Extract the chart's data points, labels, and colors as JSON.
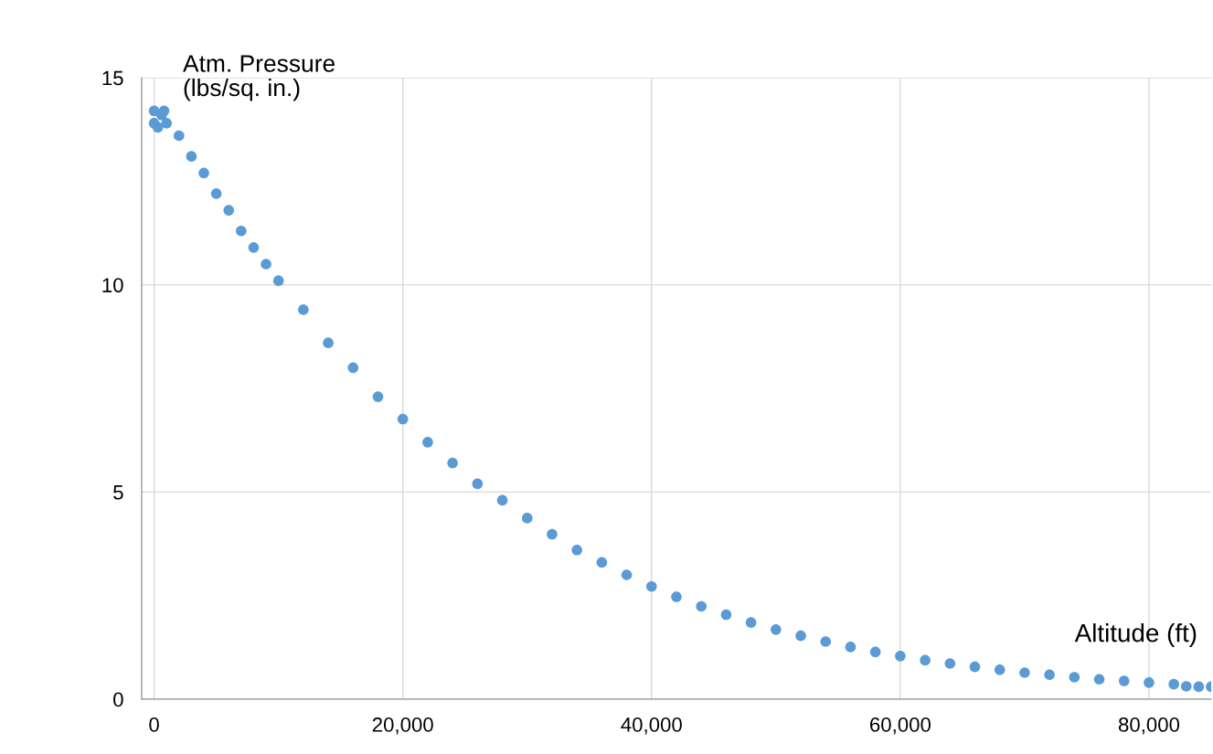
{
  "chart_data": {
    "type": "scatter",
    "xlabel": "Altitude (ft)",
    "ylabel": "Atm. Pressure\n(lbs/sq. in.)",
    "series": [
      {
        "color": "#5b9bd5",
        "x": [
          0,
          0,
          300,
          600,
          800,
          1000,
          2000,
          3000,
          4000,
          5000,
          6000,
          7000,
          8000,
          9000,
          10000,
          12000,
          14000,
          16000,
          18000,
          20000,
          22000,
          24000,
          26000,
          28000,
          30000,
          32000,
          34000,
          36000,
          38000,
          40000,
          42000,
          44000,
          46000,
          48000,
          50000,
          52000,
          54000,
          56000,
          58000,
          60000,
          62000,
          64000,
          66000,
          68000,
          70000,
          72000,
          74000,
          76000,
          78000,
          80000,
          82000,
          83000,
          84000,
          85000
        ],
        "values": [
          14.2,
          13.9,
          13.8,
          14.1,
          14.2,
          13.9,
          13.6,
          13.1,
          12.7,
          12.2,
          11.8,
          11.3,
          10.9,
          10.5,
          10.1,
          9.4,
          8.6,
          8.0,
          7.3,
          6.76,
          6.2,
          5.7,
          5.2,
          4.8,
          4.37,
          3.98,
          3.6,
          3.3,
          3.0,
          2.72,
          2.47,
          2.24,
          2.04,
          1.85,
          1.68,
          1.53,
          1.39,
          1.26,
          1.14,
          1.04,
          0.94,
          0.86,
          0.78,
          0.71,
          0.64,
          0.59,
          0.53,
          0.48,
          0.44,
          0.4,
          0.36,
          0.31,
          0.3,
          0.3
        ]
      }
    ],
    "xlim": [
      -1000,
      85000
    ],
    "ylim": [
      0,
      15
    ],
    "xticks": [
      {
        "value": 0,
        "label": "0"
      },
      {
        "value": 20000,
        "label": "20,000"
      },
      {
        "value": 40000,
        "label": "40,000"
      },
      {
        "value": 60000,
        "label": "60,000"
      },
      {
        "value": 80000,
        "label": "80,000"
      }
    ],
    "yticks": [
      0,
      5,
      10,
      15
    ],
    "grid": true,
    "marker": "circle"
  }
}
